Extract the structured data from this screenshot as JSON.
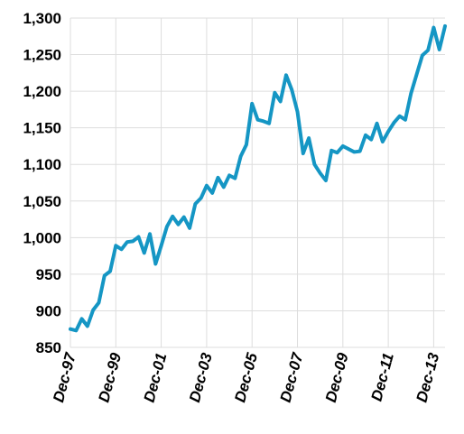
{
  "chart_data": {
    "type": "line",
    "title": "",
    "xlabel": "",
    "ylabel": "",
    "ylim": [
      850,
      1300
    ],
    "y_ticks": [
      "850",
      "900",
      "950",
      "1,000",
      "1,050",
      "1,100",
      "1,150",
      "1,200",
      "1,250",
      "1,300"
    ],
    "x_range": [
      0,
      64
    ],
    "x_ticks": [
      {
        "label": "Dec-97",
        "x": 0
      },
      {
        "label": "Dec-99",
        "x": 8
      },
      {
        "label": "Dec-01",
        "x": 16
      },
      {
        "label": "Dec-03",
        "x": 24
      },
      {
        "label": "Dec-05",
        "x": 32
      },
      {
        "label": "Dec-07",
        "x": 40
      },
      {
        "label": "Dec-09",
        "x": 48
      },
      {
        "label": "Dec-11",
        "x": 56
      },
      {
        "label": "Dec-13",
        "x": 64
      }
    ],
    "grid": true,
    "line_color": "#1596c4",
    "grid_color": "#dddddd",
    "series": [
      {
        "values": [
          875,
          873,
          889,
          879,
          901,
          911,
          948,
          954,
          989,
          984,
          994,
          995,
          1001,
          979,
          1005,
          964,
          989,
          1015,
          1029,
          1018,
          1028,
          1013,
          1046,
          1054,
          1071,
          1061,
          1082,
          1069,
          1085,
          1081,
          1111,
          1127,
          1183,
          1161,
          1159,
          1156,
          1198,
          1186,
          1222,
          1202,
          1172,
          1115,
          1136,
          1100,
          1088,
          1078,
          1119,
          1116,
          1125,
          1121,
          1117,
          1118,
          1140,
          1134,
          1156,
          1131,
          1145,
          1157,
          1166,
          1161,
          1197,
          1223,
          1249,
          1256,
          1287,
          1257,
          1289
        ]
      }
    ]
  }
}
